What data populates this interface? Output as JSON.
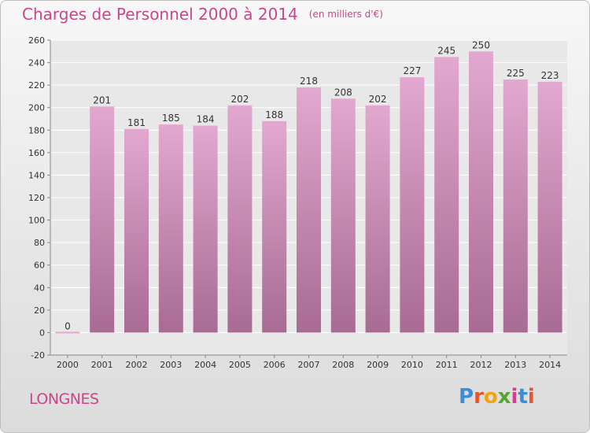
{
  "header": {
    "title": "Charges de Personnel 2000 à 2014",
    "subtitle": "(en milliers d'€)"
  },
  "footer": {
    "place": "LONGNES",
    "logo_text": "Proxiti"
  },
  "colors": {
    "title": "#c8468a",
    "bar_top": "#e3a8cf",
    "bar_bottom": "#a86b93"
  },
  "chart_data": {
    "type": "bar",
    "categories": [
      "2000",
      "2001",
      "2002",
      "2003",
      "2004",
      "2005",
      "2006",
      "2007",
      "2008",
      "2009",
      "2010",
      "2011",
      "2012",
      "2013",
      "2014"
    ],
    "values": [
      0,
      201,
      181,
      185,
      184,
      202,
      188,
      218,
      208,
      202,
      227,
      245,
      250,
      225,
      223
    ],
    "ylim": [
      -20,
      260
    ],
    "yticks": [
      -20,
      0,
      20,
      40,
      60,
      80,
      100,
      120,
      140,
      160,
      180,
      200,
      220,
      240,
      260
    ],
    "grid": true,
    "legend": "none"
  }
}
